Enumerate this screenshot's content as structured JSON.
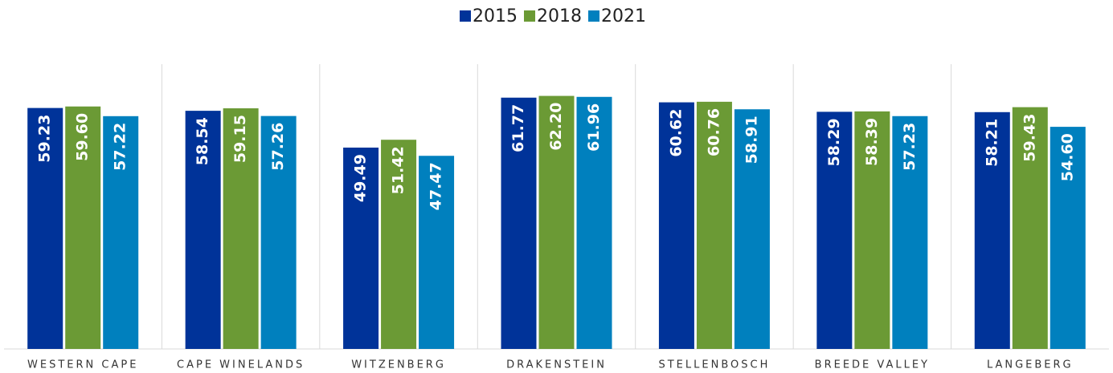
{
  "chart_data": {
    "type": "bar",
    "categories": [
      "WESTERN CAPE",
      "CAPE WINELANDS",
      "WITZENBERG",
      "DRAKENSTEIN",
      "STELLENBOSCH",
      "BREEDE VALLEY",
      "LANGEBERG"
    ],
    "series": [
      {
        "name": "2015",
        "color": "#003399",
        "values": [
          59.23,
          58.54,
          49.49,
          61.77,
          60.62,
          58.29,
          58.21
        ],
        "value_labels": [
          "59.23",
          "58.54",
          "49.49",
          "61.77",
          "60.62",
          "58.29",
          "58.21"
        ]
      },
      {
        "name": "2018",
        "color": "#6b9a35",
        "values": [
          59.6,
          59.15,
          51.42,
          62.2,
          60.76,
          58.39,
          59.43
        ],
        "value_labels": [
          "59.60",
          "59.15",
          "51.42",
          "62.20",
          "60.76",
          "58.39",
          "59.43"
        ]
      },
      {
        "name": "2021",
        "color": "#0080be",
        "values": [
          57.22,
          57.26,
          47.47,
          61.96,
          58.91,
          57.23,
          54.6
        ],
        "value_labels": [
          "57.22",
          "57.26",
          "47.47",
          "61.96",
          "58.91",
          "57.23",
          "54.60"
        ]
      }
    ],
    "ylim": [
      0,
      70
    ],
    "legend": "top"
  }
}
